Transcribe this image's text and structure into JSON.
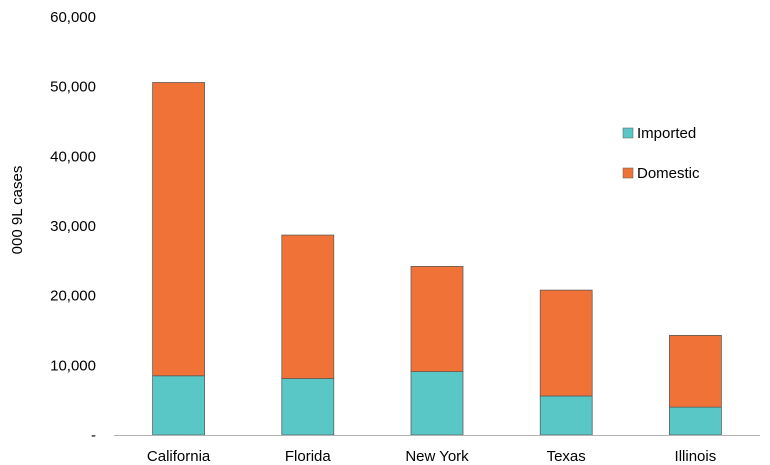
{
  "chart_data": {
    "type": "bar",
    "stacked": true,
    "categories": [
      "California",
      "Florida",
      "New York",
      "Texas",
      "Illinois"
    ],
    "series": [
      {
        "name": "Imported",
        "values": [
          8500,
          8100,
          9100,
          5600,
          4000
        ],
        "color": "#58c7c6"
      },
      {
        "name": "Domestic",
        "values": [
          42100,
          20600,
          15100,
          15200,
          10300
        ],
        "color": "#f07236"
      }
    ],
    "ylabel": "000 9L cases",
    "ylim": [
      0,
      60000
    ],
    "yticks": [
      {
        "value": 0,
        "label": "-"
      },
      {
        "value": 10000,
        "label": "10,000"
      },
      {
        "value": 20000,
        "label": "20,000"
      },
      {
        "value": 30000,
        "label": "30,000"
      },
      {
        "value": 40000,
        "label": "40,000"
      },
      {
        "value": 50000,
        "label": "50,000"
      },
      {
        "value": 60000,
        "label": "60,000"
      }
    ],
    "grid": false,
    "legend_position": "right",
    "legend_order": [
      "Imported",
      "Domestic"
    ]
  }
}
